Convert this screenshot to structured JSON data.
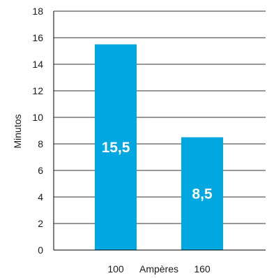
{
  "chart_data": {
    "type": "bar",
    "categories": [
      "100",
      "160"
    ],
    "values": [
      15.5,
      8.5
    ],
    "value_labels": [
      "15,5",
      "8,5"
    ],
    "xlabel": "Ampères",
    "ylabel": "Minutos",
    "ylim": [
      0,
      18
    ],
    "yticks": [
      "0",
      "2",
      "4",
      "6",
      "8",
      "10",
      "12",
      "14",
      "16",
      "18"
    ],
    "grid": true,
    "legend": "none",
    "colors": {
      "bar": "#00a7e1",
      "grid": "#333333",
      "axis": "#000000"
    }
  }
}
